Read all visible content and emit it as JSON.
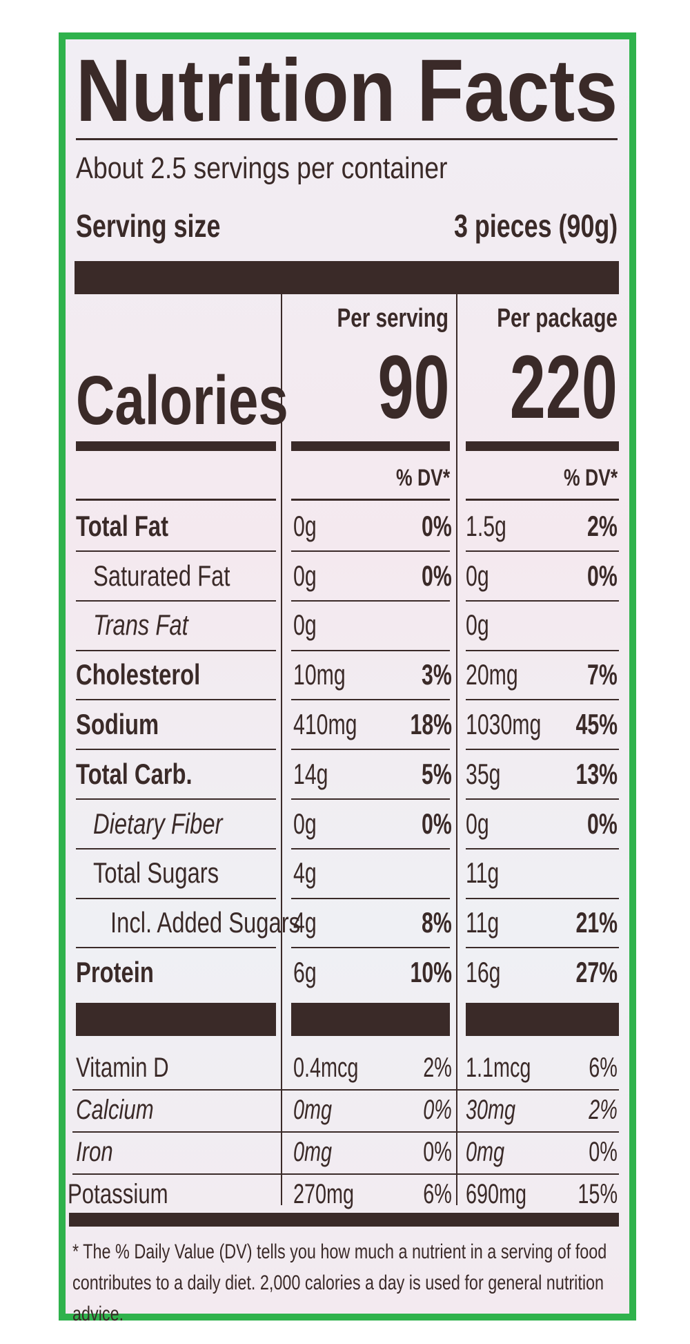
{
  "header": {
    "title": "Nutrition Facts",
    "servings": "About 2.5 servings per container",
    "serving_size_label": "Serving size",
    "serving_size_value": "3 pieces (90g)"
  },
  "columns": [
    "Per serving",
    "Per package"
  ],
  "calories": {
    "label": "Calories",
    "values": [
      "90",
      "220"
    ]
  },
  "dv_header": [
    "% DV*",
    "% DV*"
  ],
  "rows": [
    {
      "name": "Total Fat",
      "style": "bold",
      "serving": [
        "0g",
        "0%"
      ],
      "package": [
        "1.5g",
        "2%"
      ]
    },
    {
      "name": "Saturated Fat",
      "style": "sub",
      "serving": [
        "0g",
        "0%"
      ],
      "package": [
        "0g",
        "0%"
      ]
    },
    {
      "name": "Trans Fat",
      "style": "sub-italic",
      "serving": [
        "0g"
      ],
      "package": [
        "0g"
      ]
    },
    {
      "name": "Cholesterol",
      "style": "bold",
      "serving": [
        "10mg",
        "3%"
      ],
      "package": [
        "20mg",
        "7%"
      ]
    },
    {
      "name": "Sodium",
      "style": "bold",
      "serving": [
        "410mg",
        "18%"
      ],
      "package": [
        "1030mg",
        "45%"
      ]
    },
    {
      "name": "Total Carb.",
      "style": "bold",
      "serving": [
        "14g",
        "5%"
      ],
      "package": [
        "35g",
        "13%"
      ]
    },
    {
      "name": "Dietary Fiber",
      "style": "sub-italic",
      "serving": [
        "0g",
        "0%"
      ],
      "package": [
        "0g",
        "0%"
      ]
    },
    {
      "name": "Total Sugars",
      "style": "sub",
      "serving": [
        "4g"
      ],
      "package": [
        "11g"
      ]
    },
    {
      "name": "Incl. Added Sugars",
      "style": "subsub",
      "serving": [
        "4g",
        "8%"
      ],
      "package": [
        "11g",
        "21%"
      ]
    },
    {
      "name": "Protein",
      "style": "bold",
      "serving": [
        "6g",
        "10%"
      ],
      "package": [
        "16g",
        "27%"
      ]
    }
  ],
  "vitamins": [
    {
      "name": "Vitamin D",
      "serving": [
        "0.4mcg",
        "2%"
      ],
      "package": [
        "1.1mcg",
        "6%"
      ]
    },
    {
      "name": "Calcium",
      "serving": [
        "0mg",
        "0%"
      ],
      "package": [
        "30mg",
        "2%"
      ]
    },
    {
      "name": "Iron",
      "serving": [
        "0mg",
        "0%"
      ],
      "package": [
        "0mg",
        "0%"
      ]
    },
    {
      "name": "Potassium",
      "serving": [
        "270mg",
        "6%"
      ],
      "package": [
        "690mg",
        "15%"
      ]
    }
  ],
  "footnote": "* The % Daily Value (DV) tells you how much a nutrient in a serving of food contributes to a daily diet. 2,000 calories a day is used for general nutrition advice."
}
